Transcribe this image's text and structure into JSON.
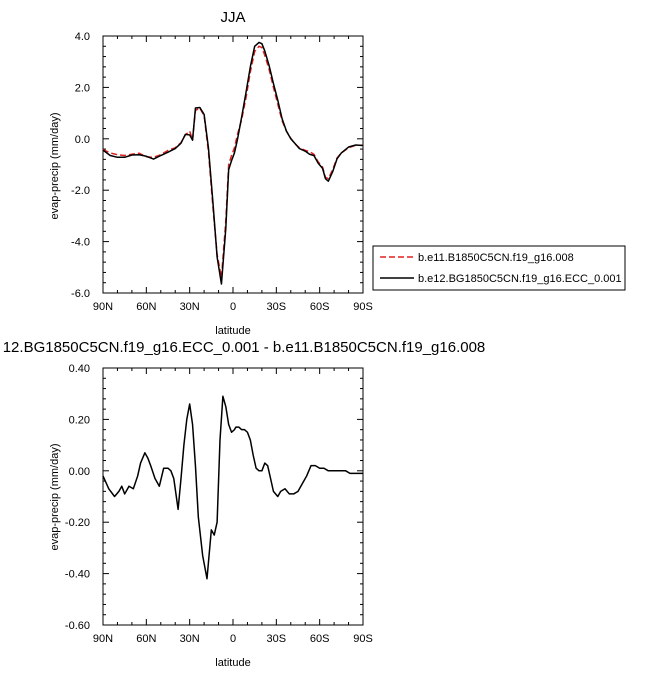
{
  "chart_data": [
    {
      "type": "line",
      "title": "JJA",
      "xlabel": "latitude",
      "ylabel": "evap-precip (mm/day)",
      "xlim": [
        90,
        -90
      ],
      "ylim": [
        -6,
        4
      ],
      "x_ticks": [
        90,
        60,
        30,
        0,
        -30,
        -60,
        -90
      ],
      "x_tick_labels": [
        "90N",
        "60N",
        "30N",
        "0",
        "30S",
        "60S",
        "90S"
      ],
      "y_ticks": [
        -6,
        -4,
        -2,
        0,
        2,
        4
      ],
      "y_tick_labels": [
        "-6.0",
        "-4.0",
        "-2.0",
        "0.0",
        "2.0",
        "4.0"
      ],
      "legend_position": "right-bottom",
      "series": [
        {
          "name": "b.e11.B1850C5CN.f19_g16.008",
          "color": "#e0201e",
          "dash": "dashed",
          "x": [
            90,
            85,
            80,
            75,
            70,
            65,
            60,
            55,
            50,
            45,
            40,
            36,
            33,
            30,
            28,
            26,
            23,
            20,
            17,
            14,
            11,
            8,
            5,
            3,
            1,
            -1,
            -3,
            -6,
            -9,
            -12,
            -15,
            -18,
            -20,
            -22,
            -25,
            -28,
            -31,
            -34,
            -37,
            -40,
            -43,
            -46,
            -50,
            -53,
            -56,
            -59,
            -62,
            -64,
            -66,
            -69,
            -72,
            -75,
            -80,
            -85,
            -90
          ],
          "values": [
            -0.42,
            -0.55,
            -0.62,
            -0.65,
            -0.6,
            -0.56,
            -0.7,
            -0.72,
            -0.62,
            -0.45,
            -0.35,
            -0.15,
            0.15,
            0.3,
            -0.05,
            1.1,
            1.2,
            0.9,
            -0.5,
            -2.6,
            -4.5,
            -5.4,
            -3.2,
            -1.0,
            -0.65,
            -0.35,
            0.15,
            0.75,
            1.6,
            2.6,
            3.4,
            3.6,
            3.55,
            3.25,
            2.7,
            2.0,
            1.35,
            0.7,
            0.3,
            0.02,
            -0.2,
            -0.35,
            -0.45,
            -0.5,
            -0.6,
            -0.9,
            -1.1,
            -1.5,
            -1.55,
            -1.2,
            -0.75,
            -0.55,
            -0.35,
            -0.25,
            -0.25
          ]
        },
        {
          "name": "b.e12.BG1850C5CN.f19_g16.ECC_0.001",
          "color": "#000000",
          "dash": "solid",
          "x": [
            90,
            85,
            80,
            75,
            70,
            65,
            60,
            55,
            50,
            45,
            40,
            36,
            33,
            30,
            28,
            26,
            23,
            20,
            17,
            14,
            11,
            8,
            5,
            3,
            1,
            -1,
            -3,
            -6,
            -9,
            -12,
            -15,
            -18,
            -20,
            -22,
            -25,
            -28,
            -31,
            -34,
            -37,
            -40,
            -43,
            -46,
            -50,
            -53,
            -56,
            -59,
            -62,
            -64,
            -66,
            -69,
            -72,
            -75,
            -80,
            -85,
            -90
          ],
          "values": [
            -0.44,
            -0.65,
            -0.72,
            -0.72,
            -0.63,
            -0.62,
            -0.68,
            -0.79,
            -0.65,
            -0.52,
            -0.38,
            -0.17,
            0.17,
            0.15,
            -0.05,
            1.2,
            1.22,
            0.95,
            -0.35,
            -2.4,
            -4.6,
            -5.65,
            -3.5,
            -1.2,
            -0.85,
            -0.55,
            -0.05,
            0.85,
            1.8,
            2.8,
            3.6,
            3.75,
            3.7,
            3.42,
            2.85,
            2.15,
            1.5,
            0.78,
            0.3,
            0.0,
            -0.19,
            -0.38,
            -0.48,
            -0.6,
            -0.65,
            -0.95,
            -1.15,
            -1.55,
            -1.65,
            -1.28,
            -0.78,
            -0.55,
            -0.32,
            -0.24,
            -0.26
          ]
        }
      ]
    },
    {
      "type": "line",
      "title": "12.BG1850C5CN.f19_g16.ECC_0.001 - b.e11.B1850C5CN.f19_g16.008",
      "xlabel": "latitude",
      "ylabel": "evap-precip (mm/day)",
      "xlim": [
        90,
        -90
      ],
      "ylim": [
        -0.6,
        0.4
      ],
      "x_ticks": [
        90,
        60,
        30,
        0,
        -30,
        -60,
        -90
      ],
      "x_tick_labels": [
        "90N",
        "60N",
        "30N",
        "0",
        "30S",
        "60S",
        "90S"
      ],
      "y_ticks": [
        -0.6,
        -0.4,
        -0.2,
        0.0,
        0.2,
        0.4
      ],
      "y_tick_labels": [
        "-0.60",
        "-0.40",
        "-0.20",
        "0.00",
        "0.20",
        "0.40"
      ],
      "series": [
        {
          "color": "#000000",
          "dash": "solid",
          "x": [
            90,
            86,
            82,
            79,
            77,
            75,
            72,
            69,
            66,
            64,
            61,
            59,
            57,
            54,
            51,
            48,
            45,
            43,
            41,
            38,
            36,
            34,
            32,
            30,
            28,
            26,
            24,
            21,
            18,
            15,
            13,
            11,
            9,
            7,
            5,
            3,
            1,
            -1,
            -2,
            -4,
            -6,
            -8,
            -10,
            -12,
            -14,
            -16,
            -18,
            -20,
            -22,
            -24,
            -26,
            -28,
            -31,
            -33,
            -36,
            -39,
            -42,
            -45,
            -48,
            -51,
            -54,
            -57,
            -60,
            -63,
            -66,
            -69,
            -72,
            -75,
            -78,
            -81,
            -84,
            -87,
            -90
          ],
          "values": [
            -0.02,
            -0.07,
            -0.1,
            -0.08,
            -0.06,
            -0.09,
            -0.06,
            -0.07,
            -0.02,
            0.03,
            0.07,
            0.05,
            0.02,
            -0.03,
            -0.06,
            0.01,
            0.01,
            0.0,
            -0.03,
            -0.15,
            -0.03,
            0.1,
            0.2,
            0.26,
            0.18,
            0.02,
            -0.18,
            -0.33,
            -0.42,
            -0.23,
            -0.25,
            -0.2,
            0.12,
            0.29,
            0.25,
            0.18,
            0.15,
            0.16,
            0.17,
            0.17,
            0.16,
            0.16,
            0.15,
            0.12,
            0.06,
            0.01,
            0.0,
            0.0,
            0.03,
            0.02,
            -0.03,
            -0.08,
            -0.1,
            -0.08,
            -0.07,
            -0.09,
            -0.09,
            -0.08,
            -0.05,
            -0.02,
            0.02,
            0.02,
            0.01,
            0.01,
            0.0,
            0.0,
            0.0,
            0.0,
            0.0,
            -0.01,
            -0.01,
            -0.01,
            -0.01
          ]
        }
      ]
    }
  ]
}
